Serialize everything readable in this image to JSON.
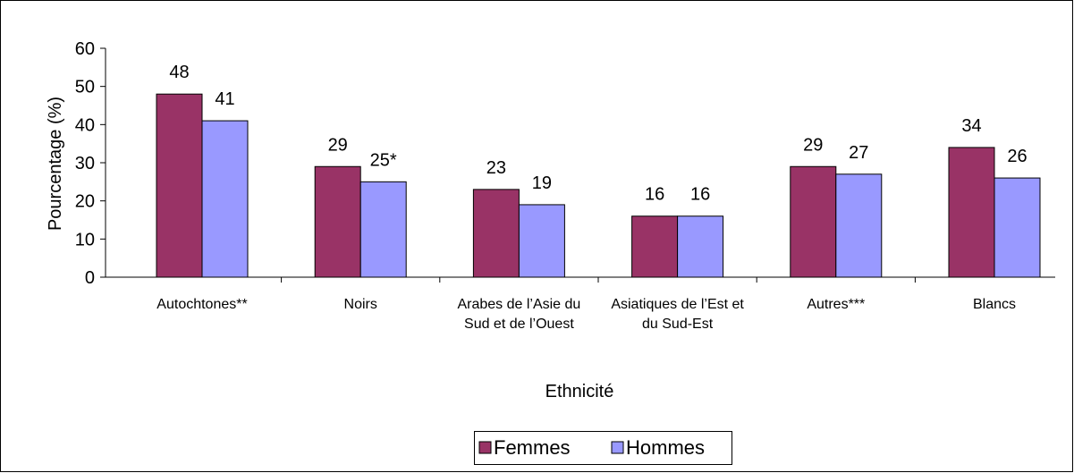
{
  "chart_data": {
    "type": "bar",
    "x_label": "Ethnicité",
    "y_label": "Pourcentage (%)",
    "categories": [
      "Autochtones**",
      "Noirs",
      "Arabes de l’Asie du Sud et de l’Ouest",
      "Asiatiques de l’Est et du Sud-Est",
      "Autres***",
      "Blancs"
    ],
    "series": [
      {
        "name": "Femmes",
        "color": "#993366",
        "values": [
          48,
          29,
          23,
          16,
          29,
          34
        ]
      },
      {
        "name": "Hommes",
        "color": "#9999ff",
        "values": [
          41,
          25,
          19,
          16,
          27,
          26
        ],
        "value_labels": [
          "41",
          "25*",
          "19",
          "16",
          "27",
          "26"
        ]
      }
    ],
    "ylim": [
      0,
      60
    ],
    "yticks": [
      0,
      10,
      20,
      30,
      40,
      50,
      60
    ],
    "grid": false,
    "legend": "bottom"
  }
}
